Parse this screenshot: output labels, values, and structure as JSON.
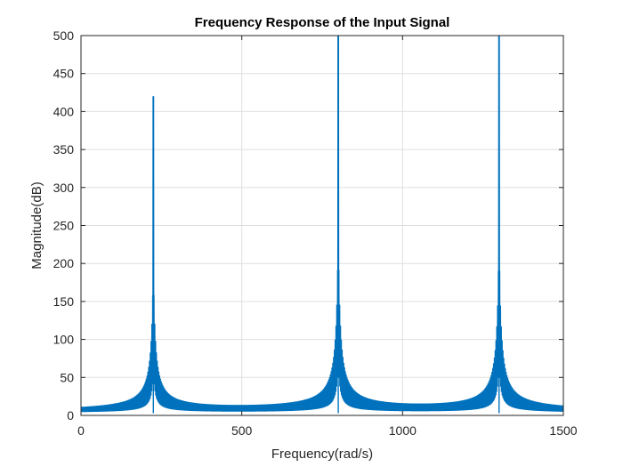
{
  "chart_data": {
    "type": "line",
    "title": "Frequency Response of the Input Signal",
    "xlabel": "Frequency(rad/s)",
    "ylabel": "Magnitude(dB)",
    "xlim": [
      0,
      1500
    ],
    "ylim": [
      0,
      500
    ],
    "xticks": [
      0,
      500,
      1000,
      1500
    ],
    "yticks": [
      0,
      50,
      100,
      150,
      200,
      250,
      300,
      350,
      400,
      450,
      500
    ],
    "grid": true,
    "legend": "none",
    "colors": {
      "line": "#0072bd",
      "grid": "#dfdfdf",
      "axis": "#262626"
    },
    "series": [
      {
        "components": [
          {
            "frequency": 225,
            "peak_magnitude": 413
          },
          {
            "frequency": 800,
            "peak_magnitude": 500
          },
          {
            "frequency": 1300,
            "peak_magnitude": 500
          }
        ],
        "floor_magnitude": 3
      }
    ]
  }
}
